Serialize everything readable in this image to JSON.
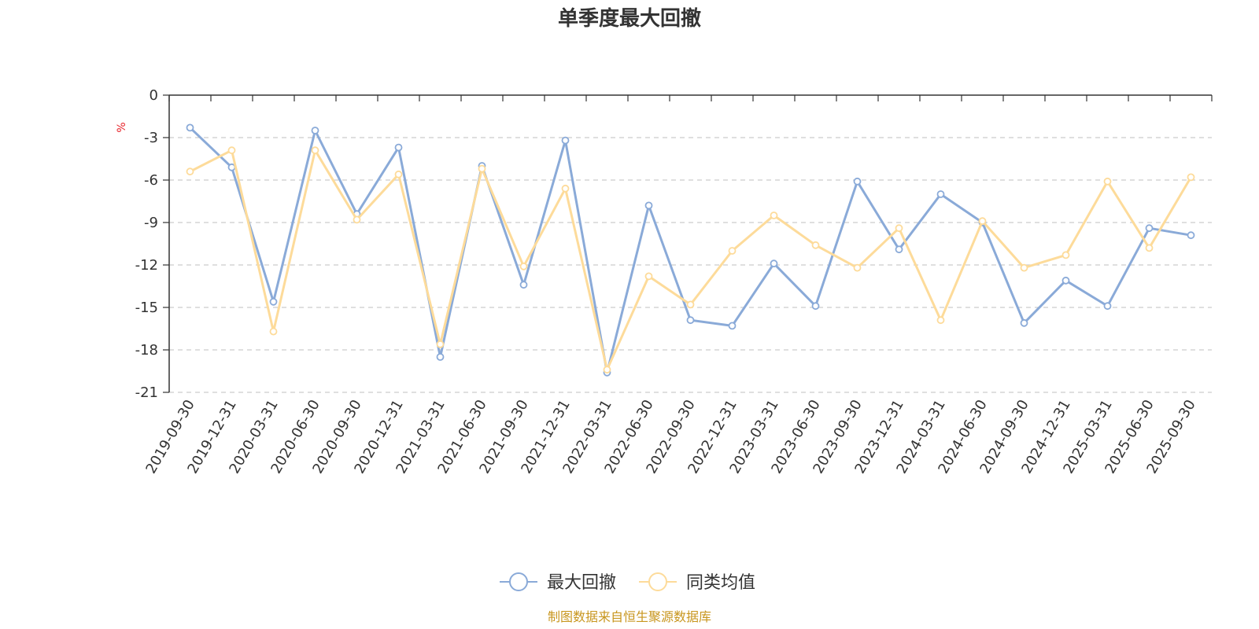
{
  "chart_data": {
    "type": "line",
    "title": "单季度最大回撤",
    "ylabel": "%",
    "ylim": [
      -21,
      0
    ],
    "yticks": [
      0,
      -3,
      -6,
      -9,
      -12,
      -15,
      -18,
      -21
    ],
    "grid": true,
    "legend_position": "bottom",
    "x": [
      "2019-09-30",
      "2019-12-31",
      "2020-03-31",
      "2020-06-30",
      "2020-09-30",
      "2020-12-31",
      "2021-03-31",
      "2021-06-30",
      "2021-09-30",
      "2021-12-31",
      "2022-03-31",
      "2022-06-30",
      "2022-09-30",
      "2022-12-31",
      "2023-03-31",
      "2023-06-30",
      "2023-09-30",
      "2023-12-31",
      "2024-03-31",
      "2024-06-30",
      "2024-09-30",
      "2024-12-31",
      "2025-03-31",
      "2025-06-30",
      "2025-09-30"
    ],
    "series": [
      {
        "name": "最大回撤",
        "color": "#8aaad8",
        "values": [
          -2.3,
          -5.1,
          -14.6,
          -2.5,
          -8.4,
          -3.7,
          -18.5,
          -5.0,
          -13.4,
          -3.2,
          -19.6,
          -7.8,
          -15.9,
          -16.3,
          -11.9,
          -14.9,
          -6.1,
          -10.9,
          -7.0,
          -9.0,
          -16.1,
          -13.1,
          -14.9,
          -9.4,
          -9.9
        ]
      },
      {
        "name": "同类均值",
        "color": "#fddb9a",
        "values": [
          -5.4,
          -3.9,
          -16.7,
          -3.9,
          -8.8,
          -5.6,
          -17.6,
          -5.2,
          -12.1,
          -6.6,
          -19.4,
          -12.8,
          -14.8,
          -11.0,
          -8.5,
          -10.6,
          -12.2,
          -9.4,
          -15.9,
          -8.9,
          -12.2,
          -11.3,
          -6.1,
          -10.8,
          -5.8
        ]
      }
    ],
    "source": "制图数据来自恒生聚源数据库",
    "unit_color": "#e8242b",
    "source_color": "#c8961e"
  }
}
